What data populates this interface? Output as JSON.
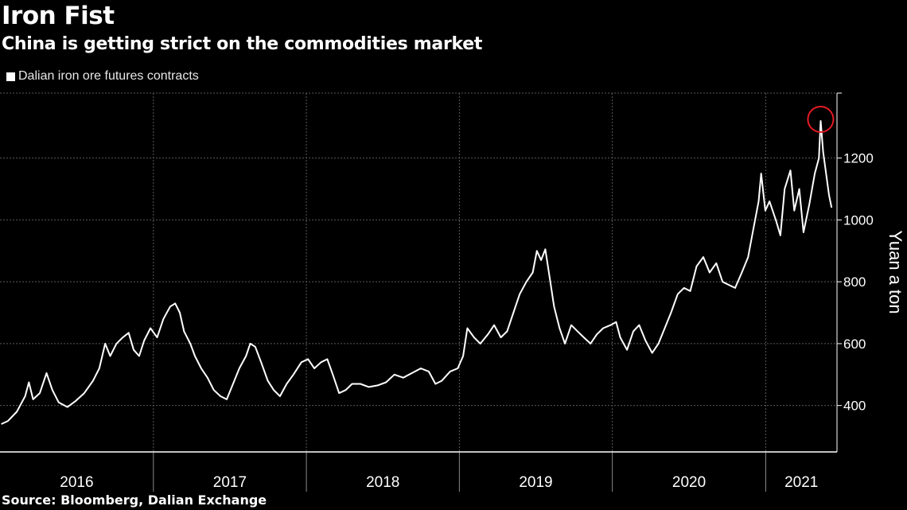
{
  "header": {
    "title": "Iron Fist",
    "subtitle": "China is getting strict on the commodities market"
  },
  "footer": {
    "source": "Source: Bloomberg, Dalian Exchange"
  },
  "colors": {
    "background": "#000000",
    "line": "#ffffff",
    "grid": "#5a5a5a",
    "highlight": "#e31b23"
  },
  "chart_data": {
    "type": "line",
    "title": "",
    "xlabel": "",
    "ylabel": "Yuan a ton",
    "y_axis_side": "right",
    "ylim": [
      250,
      1410
    ],
    "yticks": [
      400,
      600,
      800,
      1000,
      1200
    ],
    "xlim": [
      "2016-01-01",
      "2021-06-20"
    ],
    "year_boundaries": [
      "2017-01-01",
      "2018-01-01",
      "2019-01-01",
      "2020-01-01",
      "2021-01-01"
    ],
    "x_labels": [
      "2016",
      "2017",
      "2018",
      "2019",
      "2020",
      "2021"
    ],
    "grid": true,
    "legend": "top-left",
    "series": [
      {
        "name": "Dalian iron ore futures contracts",
        "points": [
          [
            "2016-01-04",
            340
          ],
          [
            "2016-01-20",
            350
          ],
          [
            "2016-02-10",
            380
          ],
          [
            "2016-03-01",
            430
          ],
          [
            "2016-03-10",
            475
          ],
          [
            "2016-03-20",
            420
          ],
          [
            "2016-04-05",
            440
          ],
          [
            "2016-04-21",
            505
          ],
          [
            "2016-05-05",
            450
          ],
          [
            "2016-05-20",
            410
          ],
          [
            "2016-06-10",
            395
          ],
          [
            "2016-06-30",
            415
          ],
          [
            "2016-07-20",
            440
          ],
          [
            "2016-08-10",
            480
          ],
          [
            "2016-08-25",
            520
          ],
          [
            "2016-09-08",
            600
          ],
          [
            "2016-09-20",
            560
          ],
          [
            "2016-10-05",
            600
          ],
          [
            "2016-10-20",
            620
          ],
          [
            "2016-11-03",
            635
          ],
          [
            "2016-11-15",
            580
          ],
          [
            "2016-11-28",
            560
          ],
          [
            "2016-12-10",
            610
          ],
          [
            "2016-12-25",
            650
          ],
          [
            "2017-01-10",
            620
          ],
          [
            "2017-01-25",
            680
          ],
          [
            "2017-02-10",
            720
          ],
          [
            "2017-02-22",
            730
          ],
          [
            "2017-03-05",
            700
          ],
          [
            "2017-03-15",
            640
          ],
          [
            "2017-03-30",
            600
          ],
          [
            "2017-04-10",
            560
          ],
          [
            "2017-04-25",
            520
          ],
          [
            "2017-05-10",
            490
          ],
          [
            "2017-05-25",
            450
          ],
          [
            "2017-06-10",
            430
          ],
          [
            "2017-06-25",
            420
          ],
          [
            "2017-07-10",
            470
          ],
          [
            "2017-07-25",
            520
          ],
          [
            "2017-08-10",
            560
          ],
          [
            "2017-08-20",
            600
          ],
          [
            "2017-09-01",
            590
          ],
          [
            "2017-09-15",
            540
          ],
          [
            "2017-10-01",
            480
          ],
          [
            "2017-10-15",
            450
          ],
          [
            "2017-10-30",
            430
          ],
          [
            "2017-11-15",
            470
          ],
          [
            "2017-12-01",
            500
          ],
          [
            "2017-12-20",
            540
          ],
          [
            "2018-01-05",
            550
          ],
          [
            "2018-01-20",
            520
          ],
          [
            "2018-02-05",
            540
          ],
          [
            "2018-02-20",
            550
          ],
          [
            "2018-03-05",
            500
          ],
          [
            "2018-03-20",
            440
          ],
          [
            "2018-04-05",
            450
          ],
          [
            "2018-04-20",
            470
          ],
          [
            "2018-05-10",
            470
          ],
          [
            "2018-05-30",
            460
          ],
          [
            "2018-06-20",
            465
          ],
          [
            "2018-07-10",
            475
          ],
          [
            "2018-07-30",
            500
          ],
          [
            "2018-08-20",
            490
          ],
          [
            "2018-09-10",
            505
          ],
          [
            "2018-10-01",
            520
          ],
          [
            "2018-10-20",
            510
          ],
          [
            "2018-11-05",
            470
          ],
          [
            "2018-11-20",
            480
          ],
          [
            "2018-12-10",
            510
          ],
          [
            "2018-12-28",
            520
          ],
          [
            "2019-01-10",
            560
          ],
          [
            "2019-01-20",
            650
          ],
          [
            "2019-02-05",
            620
          ],
          [
            "2019-02-20",
            600
          ],
          [
            "2019-03-10",
            630
          ],
          [
            "2019-03-25",
            660
          ],
          [
            "2019-04-10",
            620
          ],
          [
            "2019-04-25",
            640
          ],
          [
            "2019-05-10",
            700
          ],
          [
            "2019-05-25",
            760
          ],
          [
            "2019-06-10",
            800
          ],
          [
            "2019-06-25",
            830
          ],
          [
            "2019-07-05",
            900
          ],
          [
            "2019-07-15",
            870
          ],
          [
            "2019-07-25",
            905
          ],
          [
            "2019-08-05",
            810
          ],
          [
            "2019-08-15",
            720
          ],
          [
            "2019-08-28",
            650
          ],
          [
            "2019-09-10",
            600
          ],
          [
            "2019-09-25",
            660
          ],
          [
            "2019-10-10",
            640
          ],
          [
            "2019-10-25",
            620
          ],
          [
            "2019-11-10",
            600
          ],
          [
            "2019-11-25",
            630
          ],
          [
            "2019-12-10",
            650
          ],
          [
            "2019-12-28",
            660
          ],
          [
            "2020-01-10",
            670
          ],
          [
            "2020-01-20",
            620
          ],
          [
            "2020-02-05",
            580
          ],
          [
            "2020-02-20",
            640
          ],
          [
            "2020-03-05",
            660
          ],
          [
            "2020-03-20",
            610
          ],
          [
            "2020-04-05",
            570
          ],
          [
            "2020-04-20",
            600
          ],
          [
            "2020-05-05",
            650
          ],
          [
            "2020-05-20",
            700
          ],
          [
            "2020-06-05",
            760
          ],
          [
            "2020-06-20",
            780
          ],
          [
            "2020-07-05",
            770
          ],
          [
            "2020-07-20",
            850
          ],
          [
            "2020-08-05",
            880
          ],
          [
            "2020-08-20",
            830
          ],
          [
            "2020-09-05",
            860
          ],
          [
            "2020-09-20",
            800
          ],
          [
            "2020-10-05",
            790
          ],
          [
            "2020-10-20",
            780
          ],
          [
            "2020-11-05",
            830
          ],
          [
            "2020-11-20",
            880
          ],
          [
            "2020-12-01",
            960
          ],
          [
            "2020-12-15",
            1060
          ],
          [
            "2020-12-21",
            1150
          ],
          [
            "2020-12-31",
            1030
          ],
          [
            "2021-01-10",
            1060
          ],
          [
            "2021-01-25",
            1000
          ],
          [
            "2021-02-05",
            950
          ],
          [
            "2021-02-15",
            1100
          ],
          [
            "2021-03-01",
            1160
          ],
          [
            "2021-03-10",
            1030
          ],
          [
            "2021-03-22",
            1100
          ],
          [
            "2021-04-01",
            960
          ],
          [
            "2021-04-15",
            1050
          ],
          [
            "2021-04-28",
            1150
          ],
          [
            "2021-05-08",
            1200
          ],
          [
            "2021-05-12",
            1320
          ],
          [
            "2021-05-18",
            1220
          ],
          [
            "2021-05-25",
            1150
          ],
          [
            "2021-06-01",
            1080
          ],
          [
            "2021-06-07",
            1040
          ]
        ]
      }
    ],
    "annotations": [
      {
        "type": "circle",
        "date": "2021-05-12",
        "value": 1320
      }
    ]
  }
}
